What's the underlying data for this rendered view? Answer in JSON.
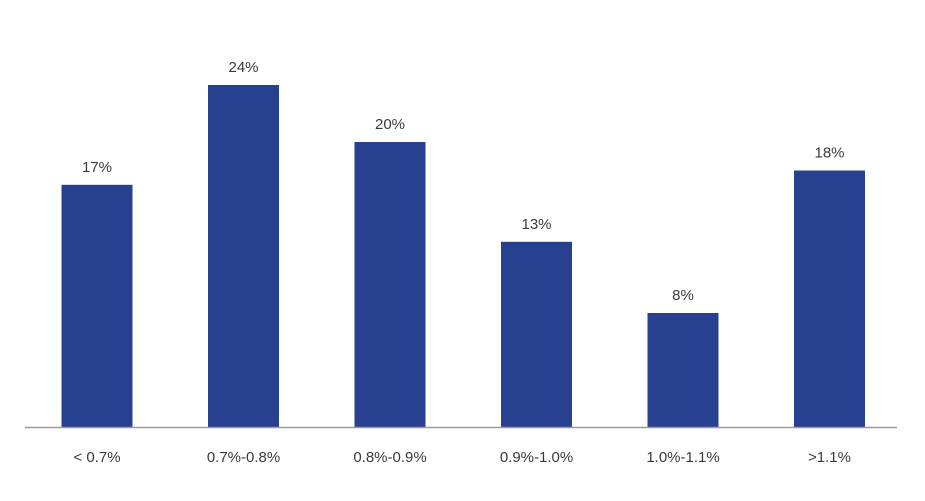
{
  "chart_data": {
    "type": "bar",
    "categories": [
      "< 0.7%",
      "0.7%-0.8%",
      "0.8%-0.9%",
      "0.9%-1.0%",
      "1.0%-1.1%",
      ">1.1%"
    ],
    "values": [
      17,
      24,
      20,
      13,
      8,
      18
    ],
    "value_labels": [
      "17%",
      "24%",
      "20%",
      "13%",
      "8%",
      "18%"
    ],
    "title": "",
    "xlabel": "",
    "ylabel": "",
    "ylim": [
      0,
      28
    ],
    "grid": false,
    "legend": "none",
    "colors": {
      "bar": "#27408f",
      "axis": "#9a9a9a",
      "text": "#3a3a3a"
    }
  }
}
